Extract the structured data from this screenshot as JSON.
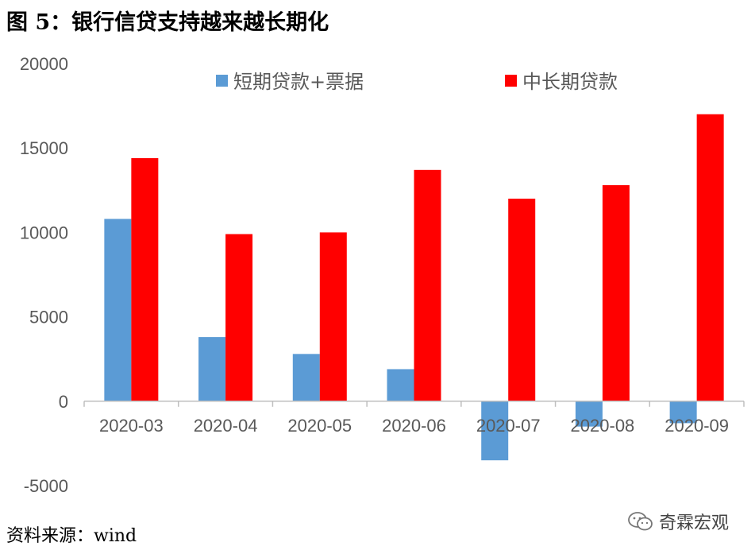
{
  "title": "图 5：银行信贷支持越来越长期化",
  "source": "资料来源：wind",
  "watermark": "奇霖宏观",
  "colors": {
    "short_term": "#5B9BD5",
    "long_term": "#FF0000",
    "axis": "#BFBFBF",
    "text": "#595959"
  },
  "chart_data": {
    "type": "bar",
    "title": "",
    "xlabel": "",
    "ylabel": "",
    "categories": [
      "2020-03",
      "2020-04",
      "2020-05",
      "2020-06",
      "2020-07",
      "2020-08",
      "2020-09"
    ],
    "series": [
      {
        "name": "短期贷款+票据",
        "color": "#5B9BD5",
        "values": [
          10800,
          3800,
          2800,
          1900,
          -3500,
          -1500,
          -1300
        ]
      },
      {
        "name": "中长期贷款",
        "color": "#FF0000",
        "values": [
          14400,
          9900,
          10000,
          13700,
          12000,
          12800,
          17000
        ]
      }
    ],
    "ylim": [
      -5000,
      20000
    ],
    "yticks": [
      -5000,
      0,
      5000,
      10000,
      15000,
      20000
    ],
    "grid": false,
    "legend": "top"
  }
}
